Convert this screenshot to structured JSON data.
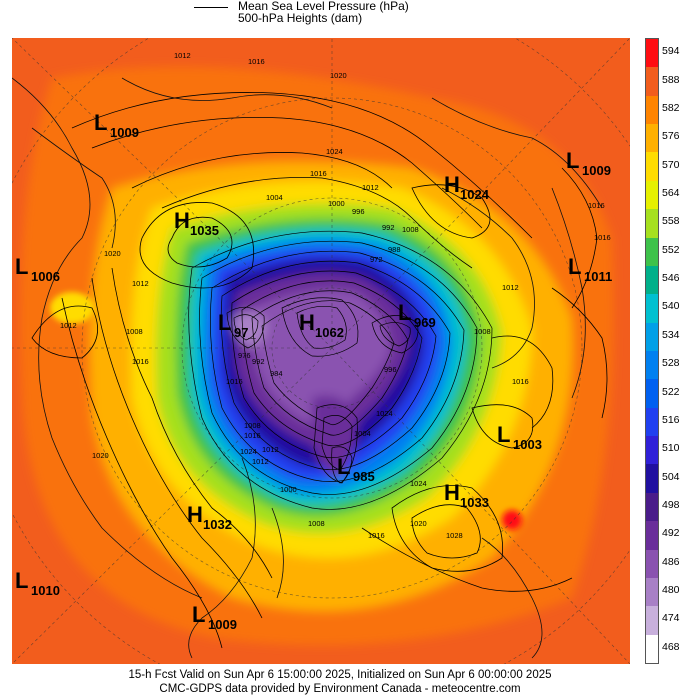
{
  "legend": {
    "line1": "Mean Sea Level Pressure (hPa)",
    "line2": "500-hPa Heights (dam)"
  },
  "colorbar": {
    "labels": [
      "594",
      "588",
      "582",
      "576",
      "570",
      "564",
      "558",
      "552",
      "546",
      "540",
      "534",
      "528",
      "522",
      "516",
      "510",
      "504",
      "498",
      "492",
      "486",
      "480",
      "474",
      "468"
    ],
    "colors": [
      "#ff0d12",
      "#f25d1d",
      "#ff8400",
      "#ffb000",
      "#ffdc00",
      "#e6f000",
      "#a6e01f",
      "#3ec24a",
      "#00b08a",
      "#00c0d0",
      "#00a0e8",
      "#0080f0",
      "#0060f0",
      "#2040f0",
      "#3020d8",
      "#2010a0",
      "#4a1c8a",
      "#6a2e9a",
      "#8a52b0",
      "#a880c6",
      "#c8b0dc",
      "#ffffff"
    ]
  },
  "centers": [
    {
      "type": "L",
      "value": "1009",
      "label_id": "low-1009-nw"
    },
    {
      "type": "L",
      "value": "1009",
      "label_id": "low-1009-ne"
    },
    {
      "type": "H",
      "value": "1024",
      "label_id": "high-1024"
    },
    {
      "type": "H",
      "value": "1035",
      "label_id": "high-1035"
    },
    {
      "type": "L",
      "value": "1006",
      "label_id": "low-1006"
    },
    {
      "type": "L",
      "value": "1011",
      "label_id": "low-1011"
    },
    {
      "type": "L",
      "value": "97_",
      "label_id": "low-97x"
    },
    {
      "type": "H",
      "value": "1062",
      "label_id": "high-1062"
    },
    {
      "type": "L",
      "value": "969",
      "label_id": "low-969"
    },
    {
      "type": "L",
      "value": "1003",
      "label_id": "low-1003"
    },
    {
      "type": "L",
      "value": "985",
      "label_id": "low-985"
    },
    {
      "type": "H",
      "value": "1033",
      "label_id": "high-1033"
    },
    {
      "type": "H",
      "value": "1032",
      "label_id": "high-1032"
    },
    {
      "type": "L",
      "value": "1010",
      "label_id": "low-1010"
    },
    {
      "type": "L",
      "value": "1009",
      "label_id": "low-1009-s"
    }
  ],
  "isobar_labels": [
    "1012",
    "1016",
    "1020",
    "1024",
    "1016",
    "1012",
    "1008",
    "1004",
    "1000",
    "996",
    "992",
    "988",
    "984",
    "1016",
    "1012",
    "1008",
    "1024",
    "1016",
    "1012",
    "1012",
    "1020",
    "1024",
    "1004",
    "1000",
    "1008",
    "1016",
    "1020",
    "1024",
    "1028",
    "1016",
    "1008",
    "1012",
    "1016",
    "1016",
    "1020",
    "1016",
    "1008",
    "1012",
    "996",
    "992",
    "976",
    "972"
  ],
  "footer": {
    "line1": "15-h Fcst Valid on Sun Apr  6 15:00:00 2025, Initialized on Sun Apr  6 00:00:00 2025",
    "line2": "CMC-GDPS data provided by Environment Canada - meteocentre.com"
  }
}
